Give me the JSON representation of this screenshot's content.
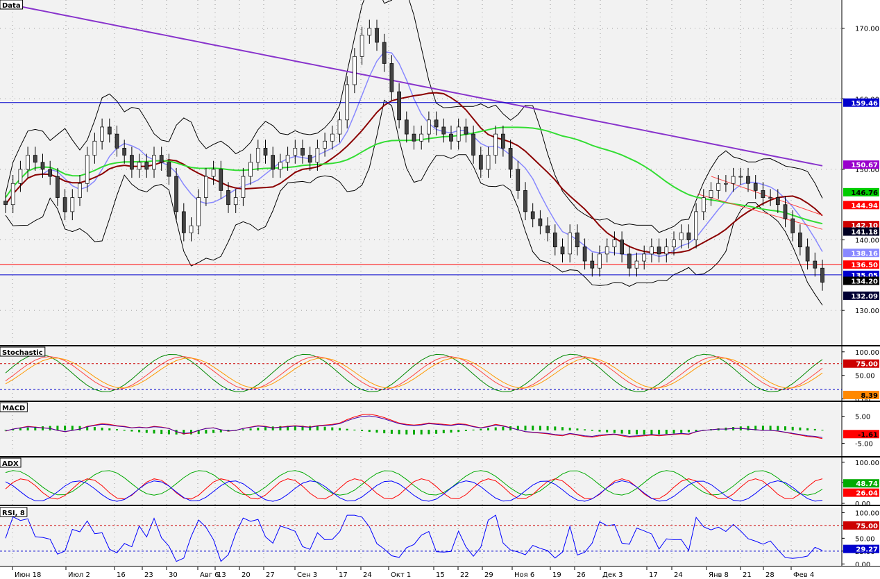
{
  "chart_data": {
    "type": "candlestick",
    "x_tick_labels": [
      "Июн 18",
      "Июл 2",
      "16",
      "23",
      "30",
      "Авг 6",
      "13",
      "20",
      "27",
      "Сен 3",
      "17",
      "24",
      "Окт 1",
      "15",
      "22",
      "29",
      "Ноя 6",
      "19",
      "26",
      "Дек 3",
      "17",
      "24",
      "Янв 8",
      "21",
      "28",
      "Фев 4"
    ],
    "panels": [
      {
        "title": "Data",
        "y_ticks": [
          "170.00",
          "160.00",
          "150.00",
          "140.00",
          "130.00"
        ],
        "ylim": [
          125,
          174
        ],
        "price_close": [
          145,
          148,
          150,
          152,
          151,
          150,
          149,
          146,
          144,
          146,
          148,
          152,
          154,
          156,
          155,
          153,
          152,
          150,
          151,
          150,
          152,
          151,
          149,
          144,
          141,
          142,
          146,
          149,
          150,
          147,
          145,
          146,
          149,
          151,
          153,
          152,
          150,
          151,
          152,
          153,
          152,
          151,
          153,
          154,
          155,
          157,
          162,
          166,
          169,
          170,
          168,
          165,
          161,
          157,
          155,
          154,
          155,
          157,
          156,
          155,
          154,
          156,
          155,
          152,
          150,
          152,
          155,
          153,
          150,
          147,
          144,
          143,
          142,
          141,
          139,
          138,
          141,
          139,
          137,
          136,
          138,
          139,
          140,
          138,
          136,
          137,
          138,
          139,
          138,
          139,
          140,
          141,
          140,
          144,
          146,
          147,
          148,
          148,
          149,
          149,
          148,
          147,
          146,
          146,
          145,
          143,
          141,
          139,
          137,
          136,
          134
        ],
        "series": [
          {
            "name": "BB",
            "values": []
          },
          {
            "name": "SMA-fast",
            "values": []
          },
          {
            "name": "SMA-mid",
            "values": []
          },
          {
            "name": "SMA-slow",
            "values": []
          },
          {
            "name": "SMA-long",
            "values": []
          }
        ],
        "horizontal_lines": [
          159.46,
          136.5,
          135.05
        ],
        "value_tags": [
          {
            "text": "159.46",
            "value": 159.46,
            "bg": "#0000cc",
            "fg": "#ffffff"
          },
          {
            "text": "150.67",
            "value": 150.67,
            "bg": "#9900cc",
            "fg": "#ffffff"
          },
          {
            "text": "146.76",
            "value": 146.76,
            "bg": "#00cc00",
            "fg": "#000000"
          },
          {
            "text": "144.94",
            "value": 144.94,
            "bg": "#ff0000",
            "fg": "#ffffff"
          },
          {
            "text": "142.10",
            "value": 142.1,
            "bg": "#cc0000",
            "fg": "#ffffff"
          },
          {
            "text": "141.18",
            "value": 141.18,
            "bg": "#000022",
            "fg": "#ffffff"
          },
          {
            "text": "138.16",
            "value": 138.16,
            "bg": "#8888ff",
            "fg": "#ffffff"
          },
          {
            "text": "136.50",
            "value": 136.5,
            "bg": "#ff0000",
            "fg": "#ffffff"
          },
          {
            "text": "135.05",
            "value": 135.05,
            "bg": "#0000cc",
            "fg": "#ffffff"
          },
          {
            "text": "134.20",
            "value": 134.2,
            "bg": "#000000",
            "fg": "#ffffff"
          },
          {
            "text": "132.09",
            "value": 132.09,
            "bg": "#000033",
            "fg": "#ffffff"
          }
        ]
      },
      {
        "title": "Stochastic",
        "y_ticks": [
          "100.00",
          "50.00",
          "0.00"
        ],
        "ylim": [
          -5,
          110
        ],
        "levels": [
          75,
          20
        ],
        "value_tags": [
          {
            "text": "75.00",
            "value": 75,
            "bg": "#cc0000",
            "fg": "#ffffff"
          },
          {
            "text": "8.39",
            "value": 8.39,
            "bg": "#ff8800",
            "fg": "#000000"
          }
        ]
      },
      {
        "title": "MACD",
        "y_ticks": [
          "5.00",
          "-5.00"
        ],
        "ylim": [
          -10,
          10
        ],
        "value_tags": [
          {
            "text": "-1.61",
            "value": -1.61,
            "bg": "#ff0000",
            "fg": "#000000"
          }
        ]
      },
      {
        "title": "ADX",
        "y_ticks": [
          "100.00",
          "50.00",
          "0.00"
        ],
        "ylim": [
          -5,
          110
        ],
        "value_tags": [
          {
            "text": "48.74",
            "value": 48.74,
            "bg": "#00aa00",
            "fg": "#ffffff"
          },
          {
            "text": "26.04",
            "value": 26.04,
            "bg": "#ff0000",
            "fg": "#ffffff"
          }
        ]
      },
      {
        "title": "RSI, 8",
        "y_ticks": [
          "100.00",
          "75.00",
          "50.00",
          "25.00",
          "0.00"
        ],
        "ylim": [
          -5,
          110
        ],
        "levels": [
          75,
          25
        ],
        "value_tags": [
          {
            "text": "75.00",
            "value": 75,
            "bg": "#cc0000",
            "fg": "#ffffff"
          },
          {
            "text": "29.27",
            "value": 29.27,
            "bg": "#0000cc",
            "fg": "#ffffff"
          }
        ]
      }
    ],
    "colors": {
      "background": "#f2f2f2",
      "up_candle": "#ffffff",
      "down_candle": "#444444",
      "sma_fast": "#8888ff",
      "sma_mid": "#8b0000",
      "sma_slow": "#33dd33",
      "sma_long": "#8833cc",
      "hline_blue": "#0000cc",
      "hline_red": "#ff0000",
      "stoch_k": "#008800",
      "stoch_d1": "#ff4444",
      "stoch_d2": "#ff9900",
      "macd": "#ff0000",
      "macd_signal": "#4400aa",
      "macd_hist": "#00aa00",
      "adx": "#00aa00",
      "di_plus": "#ff0000",
      "di_minus": "#0000ff",
      "rsi": "#0000ff"
    }
  }
}
